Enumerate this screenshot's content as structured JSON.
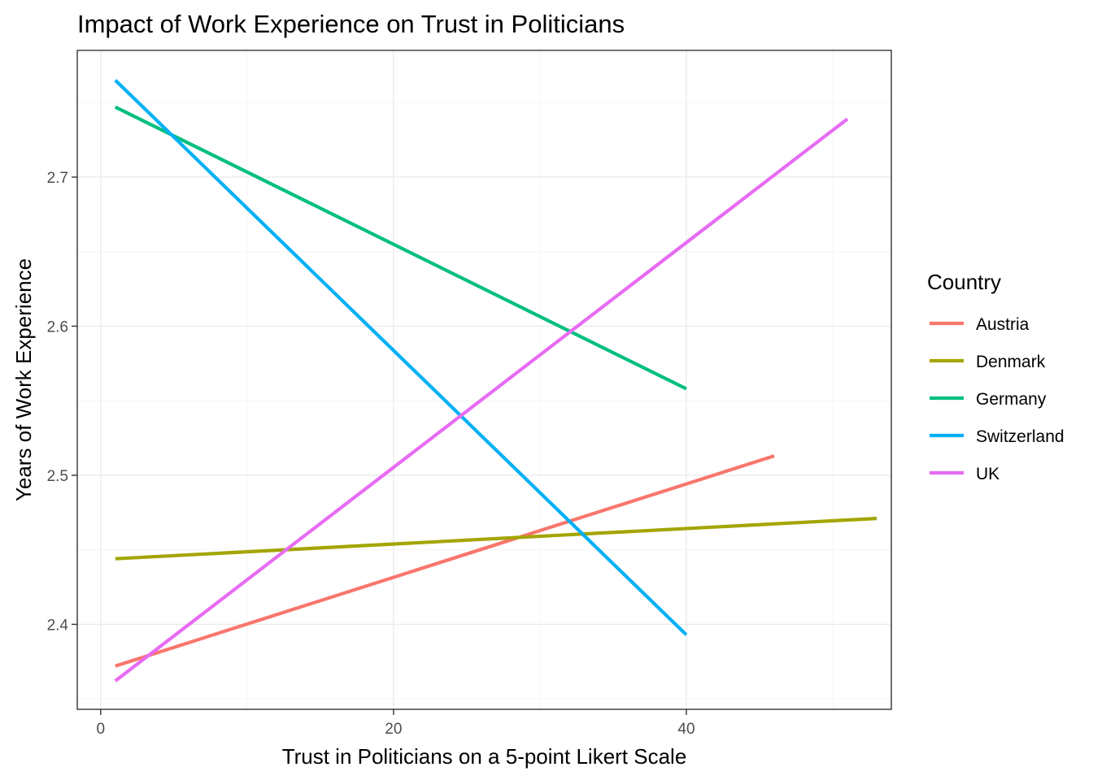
{
  "chart_data": {
    "type": "line",
    "title": "Impact of Work Experience on Trust in Politicians",
    "xlabel": "Trust in Politicians on a 5-point Likert Scale",
    "ylabel": "Years of Work Experience",
    "xlim": [
      -1.6,
      54.0
    ],
    "ylim": [
      2.343,
      2.785
    ],
    "x_ticks": [
      0,
      20,
      40
    ],
    "x_tick_labels": [
      "0",
      "20",
      "40"
    ],
    "y_ticks": [
      2.4,
      2.5,
      2.6,
      2.7
    ],
    "y_tick_labels": [
      "2.4",
      "2.5",
      "2.6",
      "2.7"
    ],
    "grid": true,
    "legend": {
      "title": "Country",
      "position": "right"
    },
    "series": [
      {
        "name": "Austria",
        "color": "#F8766D",
        "x": [
          1,
          46
        ],
        "y": [
          2.372,
          2.513
        ]
      },
      {
        "name": "Denmark",
        "color": "#A3A500",
        "x": [
          1,
          53
        ],
        "y": [
          2.444,
          2.471
        ]
      },
      {
        "name": "Germany",
        "color": "#00BF7D",
        "x": [
          1,
          40
        ],
        "y": [
          2.747,
          2.558
        ]
      },
      {
        "name": "Switzerland",
        "color": "#00B0F6",
        "x": [
          1,
          40
        ],
        "y": [
          2.765,
          2.393
        ]
      },
      {
        "name": "UK",
        "color": "#E76BF3",
        "x": [
          1,
          51
        ],
        "y": [
          2.362,
          2.739
        ]
      }
    ]
  }
}
